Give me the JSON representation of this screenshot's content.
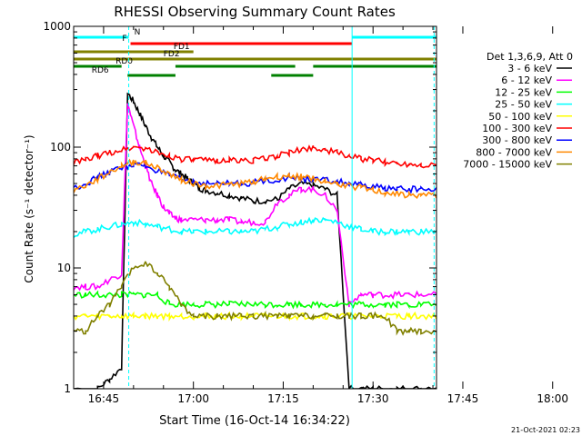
{
  "chart_data": {
    "type": "line",
    "title": "RHESSI Observing Summary Count Rates",
    "xlabel": "Start Time (16-Oct-14 16:34:22)",
    "ylabel": "Count Rate (s⁻¹ detector⁻¹)",
    "yscale": "log",
    "ylim": [
      1,
      1000
    ],
    "xlim_minutes_after_1630": [
      10,
      70.6
    ],
    "x_ticks": [
      "16:45",
      "17:00",
      "17:15",
      "17:30",
      "17:45",
      "18:00"
    ],
    "y_ticks": [
      "1",
      "10",
      "100",
      "1000"
    ],
    "grid": false,
    "legend_position": "right",
    "legend_title": "Det 1,3,6,9, Att 0",
    "series": [
      {
        "name": "3 - 6 keV",
        "color": "#000000",
        "x": [
          10,
          14,
          16,
          18,
          19,
          20,
          21,
          22,
          23,
          24,
          25,
          26,
          27,
          28,
          29,
          30,
          31,
          32,
          34,
          36,
          38,
          40,
          42,
          44,
          46,
          48,
          50,
          52,
          54,
          56,
          58,
          60,
          62,
          64,
          66,
          68,
          70.6
        ],
        "y": [
          1,
          1,
          1.2,
          1.5,
          280,
          240,
          190,
          150,
          120,
          100,
          85,
          75,
          65,
          60,
          55,
          50,
          46,
          44,
          42,
          40,
          38,
          36,
          36,
          37,
          45,
          50,
          48,
          45,
          40,
          1,
          1,
          1,
          1,
          1,
          1,
          1,
          1
        ]
      },
      {
        "name": "6 - 12 keV",
        "color": "#ff00ff",
        "x": [
          10,
          12,
          14,
          16,
          18,
          19,
          20,
          21,
          22,
          23,
          24,
          25,
          26,
          27,
          28,
          30,
          32,
          34,
          36,
          38,
          40,
          42,
          44,
          46,
          48,
          50,
          52,
          54,
          56,
          58,
          60,
          62,
          64,
          66,
          68,
          70.6
        ],
        "y": [
          7,
          7,
          7,
          8,
          9,
          230,
          150,
          100,
          70,
          50,
          40,
          32,
          28,
          26,
          25,
          25,
          25,
          25,
          25,
          24,
          24,
          24,
          35,
          40,
          45,
          45,
          40,
          30,
          5,
          6,
          6,
          6,
          6,
          6,
          6,
          6
        ]
      },
      {
        "name": "12 - 25 keV",
        "color": "#00ff00",
        "x": [
          10,
          12,
          14,
          16,
          18,
          20,
          22,
          24,
          26,
          28,
          30,
          32,
          34,
          36,
          38,
          40,
          42,
          44,
          46,
          48,
          50,
          52,
          54,
          56,
          58,
          60,
          62,
          64,
          66,
          68,
          70.6
        ],
        "y": [
          6,
          6,
          6,
          6,
          6,
          6,
          6,
          6,
          5,
          5,
          5,
          5,
          5,
          5,
          5,
          5,
          5,
          5,
          5,
          5,
          5,
          5,
          5,
          5,
          5,
          5,
          5,
          5,
          5,
          5,
          5
        ]
      },
      {
        "name": "25 - 50 keV",
        "color": "#00ffff",
        "x": [
          10,
          12,
          14,
          16,
          18,
          20,
          22,
          24,
          26,
          28,
          30,
          32,
          34,
          36,
          38,
          40,
          42,
          44,
          46,
          48,
          50,
          52,
          54,
          56,
          58,
          60,
          62,
          64,
          66,
          68,
          70.6
        ],
        "y": [
          19,
          20,
          21,
          22,
          23,
          24,
          23,
          22,
          21,
          20,
          20,
          20,
          20,
          20,
          20,
          20,
          21,
          22,
          23,
          24,
          25,
          25,
          24,
          22,
          21,
          20,
          20,
          20,
          20,
          20,
          20
        ]
      },
      {
        "name": "50 - 100 keV",
        "color": "#ffff00",
        "x": [
          10,
          12,
          14,
          16,
          18,
          20,
          22,
          24,
          26,
          28,
          30,
          32,
          34,
          36,
          38,
          40,
          42,
          44,
          46,
          48,
          50,
          52,
          54,
          56,
          58,
          60,
          62,
          64,
          66,
          68,
          70.6
        ],
        "y": [
          4,
          4,
          4,
          4,
          4,
          4,
          4,
          4,
          4,
          4,
          4,
          4,
          4,
          4,
          4,
          4,
          4,
          4,
          4,
          4,
          4,
          4,
          4,
          4,
          4,
          4,
          4,
          4,
          4,
          4,
          4
        ]
      },
      {
        "name": "100 - 300 keV",
        "color": "#ff0000",
        "x": [
          10,
          12,
          14,
          16,
          18,
          20,
          22,
          24,
          26,
          28,
          30,
          32,
          34,
          36,
          38,
          40,
          42,
          44,
          46,
          48,
          50,
          52,
          54,
          56,
          58,
          60,
          62,
          64,
          66,
          68,
          70.6
        ],
        "y": [
          75,
          78,
          85,
          90,
          95,
          100,
          98,
          90,
          85,
          80,
          78,
          78,
          78,
          78,
          78,
          78,
          80,
          85,
          90,
          95,
          100,
          95,
          90,
          85,
          80,
          78,
          75,
          74,
          73,
          72,
          72
        ]
      },
      {
        "name": "300 - 800 keV",
        "color": "#0000ff",
        "x": [
          10,
          12,
          14,
          16,
          18,
          20,
          22,
          24,
          26,
          28,
          30,
          32,
          34,
          36,
          38,
          40,
          42,
          44,
          46,
          48,
          50,
          52,
          54,
          56,
          58,
          60,
          62,
          64,
          66,
          68,
          70.6
        ],
        "y": [
          46,
          50,
          56,
          62,
          68,
          72,
          70,
          64,
          58,
          54,
          52,
          50,
          50,
          50,
          50,
          51,
          53,
          54,
          56,
          55,
          54,
          53,
          52,
          50,
          48,
          47,
          46,
          45,
          45,
          45,
          45
        ]
      },
      {
        "name": "800 - 7000 keV",
        "color": "#ff8800",
        "x": [
          10,
          12,
          14,
          16,
          18,
          20,
          22,
          24,
          26,
          28,
          30,
          32,
          34,
          36,
          38,
          40,
          42,
          44,
          46,
          48,
          50,
          52,
          54,
          56,
          58,
          60,
          62,
          64,
          66,
          68,
          70.6
        ],
        "y": [
          44,
          48,
          54,
          62,
          70,
          76,
          74,
          68,
          60,
          54,
          50,
          48,
          48,
          49,
          50,
          52,
          55,
          57,
          58,
          57,
          55,
          52,
          50,
          48,
          46,
          44,
          42,
          41,
          40,
          40,
          40
        ]
      },
      {
        "name": "7000 - 15000 keV",
        "color": "#808000",
        "x": [
          10,
          12,
          14,
          16,
          18,
          20,
          22,
          24,
          26,
          28,
          30,
          32,
          34,
          36,
          38,
          40,
          42,
          44,
          46,
          48,
          50,
          52,
          54,
          56,
          58,
          60,
          62,
          64,
          66,
          68,
          70.6
        ],
        "y": [
          3,
          3,
          4,
          5,
          7,
          10,
          11,
          9,
          7,
          5,
          4,
          4,
          4,
          4,
          4,
          4,
          4,
          4,
          4,
          4,
          4,
          4,
          4,
          4,
          4,
          4,
          4,
          3,
          3,
          3,
          3
        ]
      }
    ],
    "vertical_lines": [
      {
        "x": 19.2,
        "color": "#00ffff",
        "style": "dashed"
      },
      {
        "x": 56.5,
        "color": "#00ffff",
        "style": "solid"
      },
      {
        "x": 70.2,
        "color": "#00ffff",
        "style": "dashed"
      }
    ],
    "state_bars": [
      {
        "label": "N",
        "color": "#00ffff",
        "row": 0,
        "segments": [
          [
            10,
            19.2
          ],
          [
            56.5,
            70.6
          ]
        ]
      },
      {
        "label": "F",
        "color": "#ff0000",
        "row": 1,
        "segments": [
          [
            19.5,
            56.5
          ]
        ]
      },
      {
        "label": "FD1",
        "color": "#808000",
        "row": 2,
        "segments": [
          [
            10,
            30
          ]
        ]
      },
      {
        "label": "FD2",
        "color": "#808000",
        "row": 3,
        "segments": [
          [
            10,
            70.6
          ]
        ]
      },
      {
        "label": "RD0",
        "color": "#008000",
        "row": 4,
        "segments": [
          [
            10,
            18
          ],
          [
            27,
            47
          ],
          [
            50,
            70.6
          ]
        ]
      },
      {
        "label": "RD6",
        "color": "#008000",
        "row": 5,
        "segments": [
          [
            19,
            27
          ],
          [
            43,
            50
          ]
        ]
      }
    ],
    "footer_date": "21-Oct-2021 02:23"
  }
}
